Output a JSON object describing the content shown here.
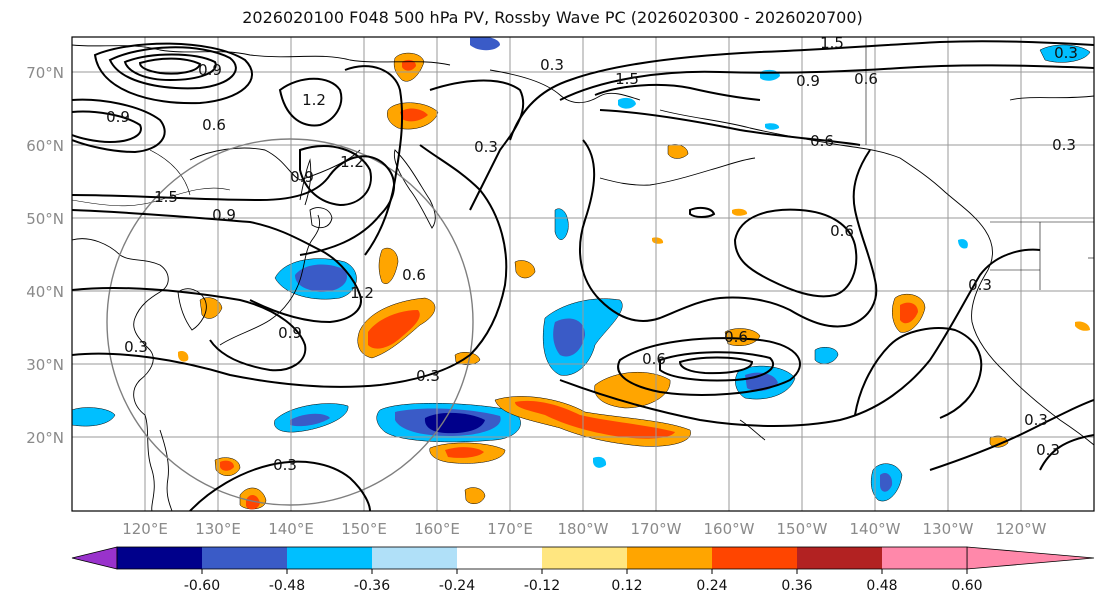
{
  "title": "2026020100 F048 500 hPa PV, Rossby Wave PC (2026020300 - 2026020700)",
  "lat_labels": [
    "70°N",
    "60°N",
    "50°N",
    "40°N",
    "30°N",
    "20°N"
  ],
  "lon_labels": [
    "120°E",
    "130°E",
    "140°E",
    "150°E",
    "160°E",
    "170°E",
    "180°W",
    "170°W",
    "160°W",
    "150°W",
    "140°W",
    "130°W",
    "120°W"
  ],
  "colorbar": {
    "colors": [
      "#9932cc",
      "#00008b",
      "#3a5bc7",
      "#00bfff",
      "#b0e0f8",
      "#ffffff",
      "#ffe680",
      "#ffa500",
      "#ff4500",
      "#b22222",
      "#ff88aa"
    ],
    "tick_labels": [
      "-0.60",
      "-0.48",
      "-0.36",
      "-0.24",
      "-0.12",
      "0.12",
      "0.24",
      "0.36",
      "0.48",
      "0.60"
    ]
  },
  "contour_labels": [
    "1.5",
    "0.3",
    "1.5",
    "0.9",
    "0.6",
    "0.6",
    "1.2",
    "0.6",
    "0.9",
    "1.5",
    "0.9",
    "0.9",
    "1.2",
    "0.3",
    "0.9",
    "1.2",
    "0.6",
    "0.3",
    "0.6",
    "0.6",
    "0.3",
    "0.3",
    "0.3",
    "0.6",
    "0.3",
    "0.9",
    "0.3",
    "0.3",
    "0.3"
  ]
}
